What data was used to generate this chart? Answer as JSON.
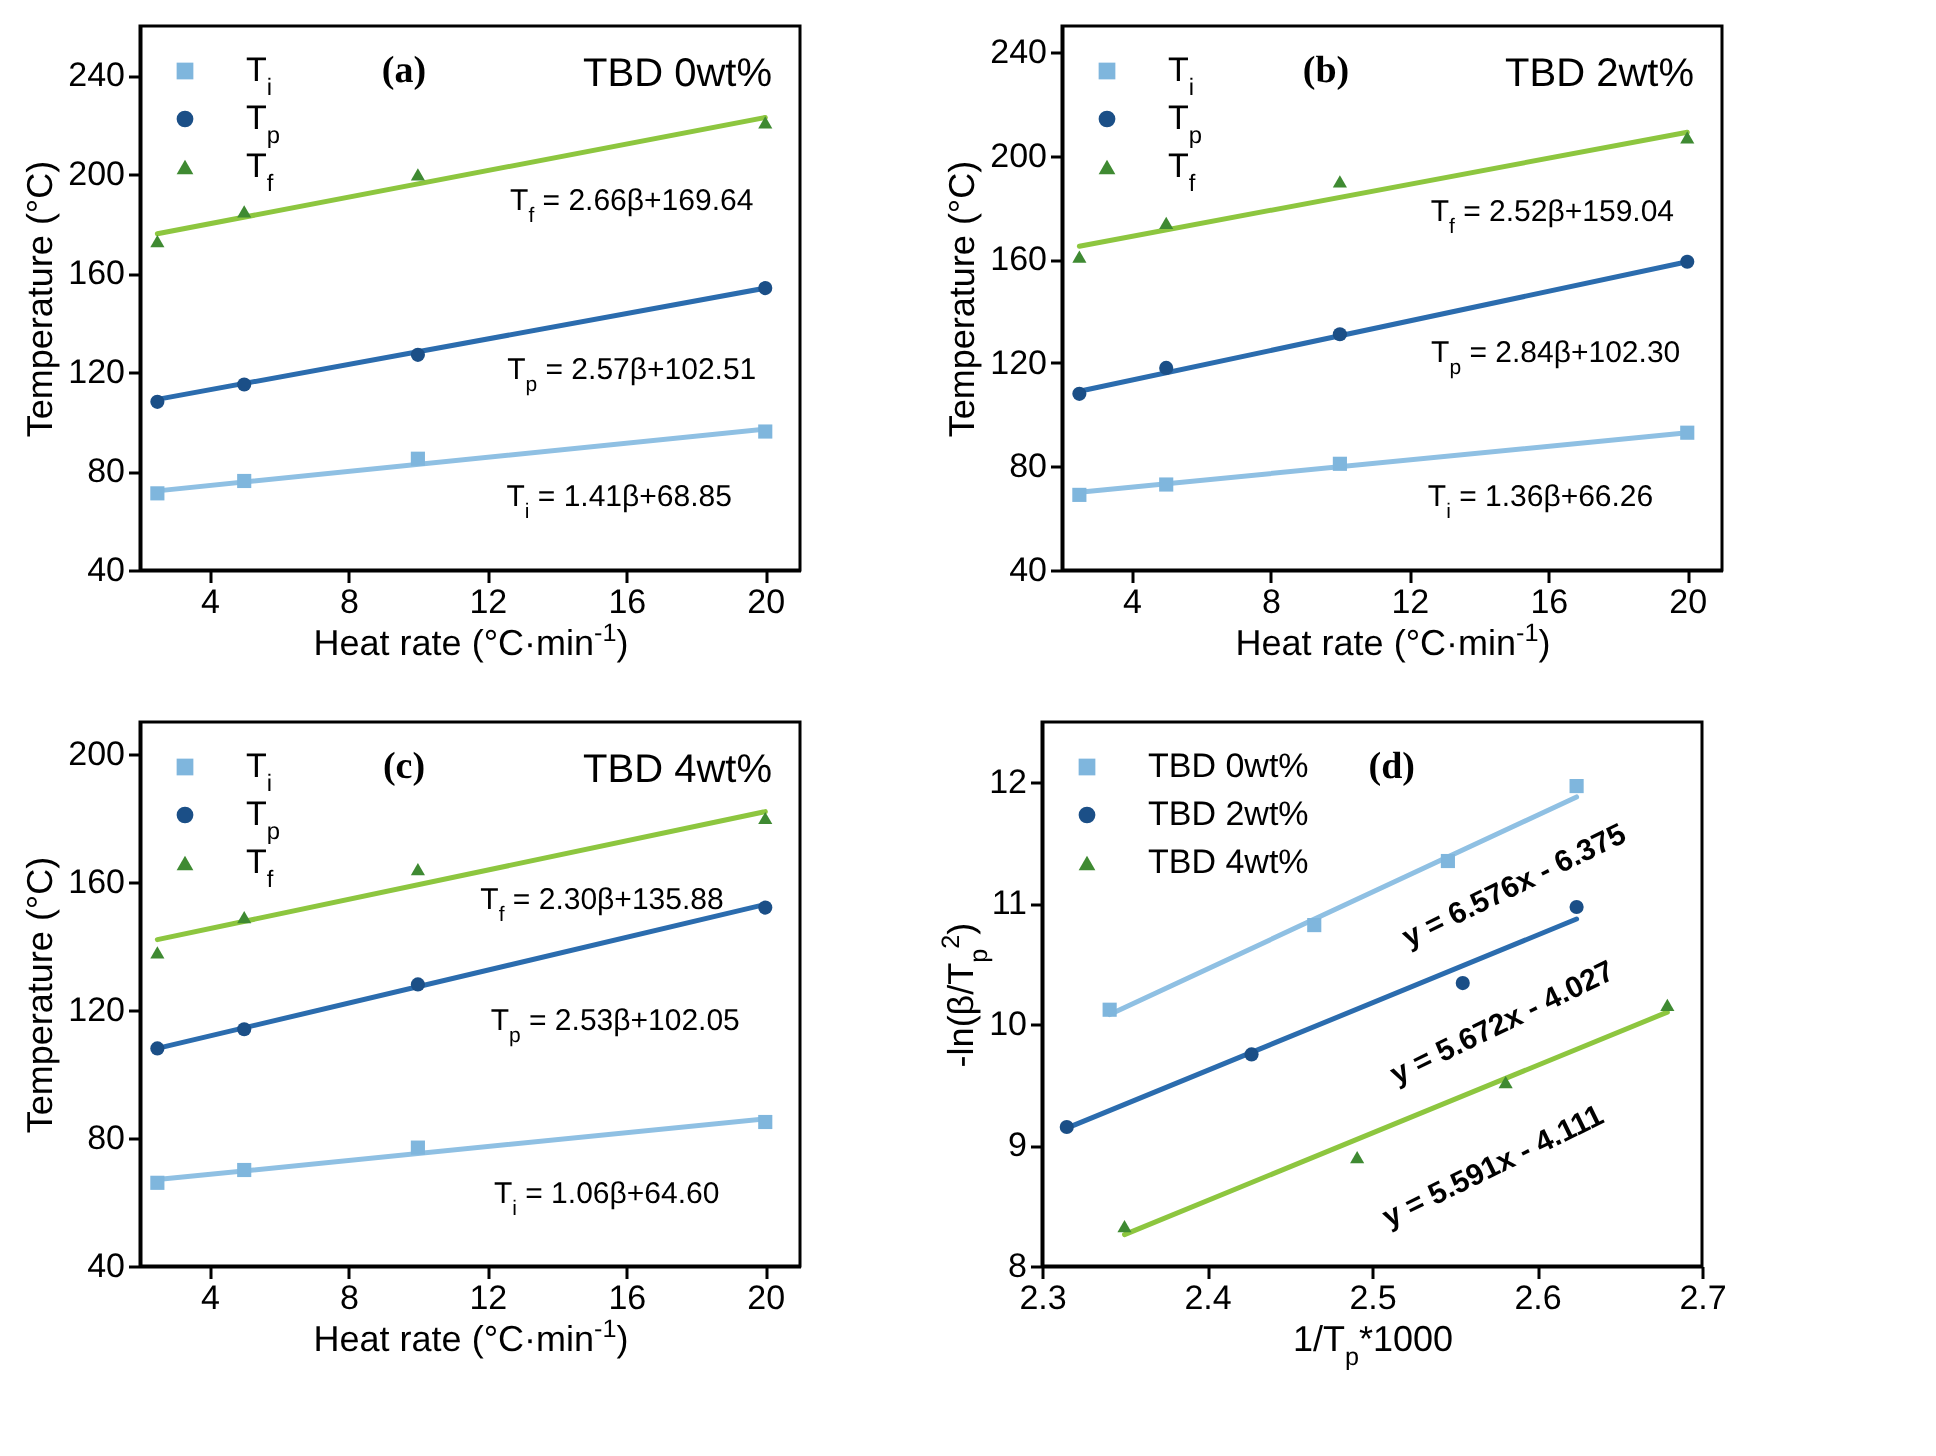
{
  "chart_data": [
    {
      "type": "scatter",
      "title": "(a)",
      "subtitle": "TBD 0wt%",
      "xlabel": "Heat rate (°C·min$^{-1}$)",
      "ylabel": "Temperature (°C)",
      "xlim": [
        2,
        21
      ],
      "xticks": [
        4,
        8,
        12,
        16,
        20
      ],
      "ylim": [
        40,
        260
      ],
      "yticks": [
        40,
        80,
        120,
        160,
        200,
        240
      ],
      "legend": "top left",
      "x": [
        2.5,
        5,
        10,
        20
      ],
      "series": [
        {
          "name": "T$_{i}$",
          "color": "#7fb6dd",
          "marker": "square",
          "values": [
            71,
            76,
            85,
            96
          ]
        },
        {
          "name": "T$_{p}$",
          "color": "#1b4f87",
          "marker": "circle",
          "values": [
            108,
            115,
            127,
            154
          ]
        },
        {
          "name": "T$_{f}$",
          "color": "#3f8a32",
          "marker": "triangle",
          "values": [
            173,
            185,
            200,
            221
          ]
        },
        {
          "type": "line",
          "color": "#8fc0e3",
          "x": [
            2.5,
            20
          ],
          "values": [
            72,
            97
          ]
        },
        {
          "type": "line",
          "color": "#2b6cae",
          "x": [
            2.5,
            20
          ],
          "values": [
            109,
            154
          ]
        },
        {
          "type": "line",
          "color": "#8dc63f",
          "x": [
            2.5,
            20
          ],
          "values": [
            176,
            223
          ]
        }
      ],
      "annotations": [
        "T$_{f}$ = 2.66β+169.64",
        "T$_{p}$ = 2.57β+102.51",
        "T$_{i}$ = 1.41β+68.85"
      ]
    },
    {
      "type": "scatter",
      "title": "(b)",
      "subtitle": "TBD 2wt%",
      "xlabel": "Heat rate (°C·min$^{-1}$)",
      "ylabel": "Temperature (°C)",
      "xlim": [
        2,
        21
      ],
      "xticks": [
        4,
        8,
        12,
        16,
        20
      ],
      "ylim": [
        40,
        250
      ],
      "yticks": [
        40,
        80,
        120,
        160,
        200,
        240
      ],
      "legend": "top left",
      "x": [
        2.5,
        5,
        10,
        20
      ],
      "series": [
        {
          "name": "T$_{i}$",
          "color": "#7fb6dd",
          "marker": "square",
          "values": [
            69,
            73,
            81,
            93
          ]
        },
        {
          "name": "T$_{p}$",
          "color": "#1b4f87",
          "marker": "circle",
          "values": [
            108,
            118,
            131,
            159
          ]
        },
        {
          "name": "T$_{f}$",
          "color": "#3f8a32",
          "marker": "triangle",
          "values": [
            161,
            174,
            190,
            207
          ]
        },
        {
          "type": "line",
          "color": "#8fc0e3",
          "x": [
            2.5,
            20
          ],
          "values": [
            70,
            93
          ]
        },
        {
          "type": "line",
          "color": "#2b6cae",
          "x": [
            2.5,
            20
          ],
          "values": [
            109,
            159
          ]
        },
        {
          "type": "line",
          "color": "#8dc63f",
          "x": [
            2.5,
            20
          ],
          "values": [
            165,
            209
          ]
        }
      ],
      "annotations": [
        "T$_{f}$ = 2.52β+159.04",
        "T$_{p}$ = 2.84β+102.30",
        "T$_{i}$ = 1.36β+66.26"
      ]
    },
    {
      "type": "scatter",
      "title": "(c)",
      "subtitle": "TBD 4wt%",
      "xlabel": "Heat rate (°C·min$^{-1}$)",
      "ylabel": "Temperature (°C)",
      "xlim": [
        2,
        21
      ],
      "xticks": [
        4,
        8,
        12,
        16,
        20
      ],
      "ylim": [
        40,
        210
      ],
      "yticks": [
        40,
        80,
        120,
        160,
        200
      ],
      "legend": "top left",
      "x": [
        2.5,
        5,
        10,
        20
      ],
      "series": [
        {
          "name": "T$_{i}$",
          "color": "#7fb6dd",
          "marker": "square",
          "values": [
            66,
            70,
            77,
            85
          ]
        },
        {
          "name": "T$_{p}$",
          "color": "#1b4f87",
          "marker": "circle",
          "values": [
            108,
            114,
            128,
            152
          ]
        },
        {
          "name": "T$_{f}$",
          "color": "#3f8a32",
          "marker": "triangle",
          "values": [
            138,
            149,
            164,
            180
          ]
        },
        {
          "type": "line",
          "color": "#8fc0e3",
          "x": [
            2.5,
            20
          ],
          "values": [
            67,
            86
          ]
        },
        {
          "type": "line",
          "color": "#2b6cae",
          "x": [
            2.5,
            20
          ],
          "values": [
            108,
            153
          ]
        },
        {
          "type": "line",
          "color": "#8dc63f",
          "x": [
            2.5,
            20
          ],
          "values": [
            142,
            182
          ]
        }
      ],
      "annotations": [
        "T$_{f}$ = 2.30β+135.88",
        "T$_{p}$ = 2.53β+102.05",
        "T$_{i}$ = 1.06β+64.60"
      ]
    },
    {
      "type": "scatter",
      "title": "(d)",
      "xlabel": "1/T$_{p}$*1000",
      "ylabel": "-ln(β/T$_{p}$$^{2}$)",
      "xlim": [
        2.3,
        2.7
      ],
      "xticks": [
        2.3,
        2.4,
        2.5,
        2.6,
        2.7
      ],
      "ylim": [
        8,
        12.5
      ],
      "yticks": [
        8,
        9,
        10,
        11,
        12
      ],
      "legend": "top left",
      "series": [
        {
          "name": "TBD 0wt%",
          "color": "#7fb6dd",
          "marker": "square",
          "x": [
            2.341,
            2.465,
            2.546,
            2.624
          ],
          "values": [
            10.12,
            10.82,
            11.35,
            11.97
          ]
        },
        {
          "name": "TBD 2wt%",
          "color": "#1b4f87",
          "marker": "circle",
          "x": [
            2.315,
            2.427,
            2.555,
            2.624
          ],
          "values": [
            9.15,
            9.75,
            10.34,
            10.97
          ]
        },
        {
          "name": "TBD 4wt%",
          "color": "#3f8a32",
          "marker": "triangle",
          "x": [
            2.35,
            2.491,
            2.581,
            2.679
          ],
          "values": [
            8.33,
            8.9,
            9.52,
            10.16
          ]
        },
        {
          "type": "line",
          "color": "#8fc0e3",
          "x": [
            2.341,
            2.624
          ],
          "values": [
            10.08,
            11.88
          ]
        },
        {
          "type": "line",
          "color": "#2b6cae",
          "x": [
            2.315,
            2.624
          ],
          "values": [
            9.14,
            10.87
          ]
        },
        {
          "type": "line",
          "color": "#8dc63f",
          "x": [
            2.35,
            2.679
          ],
          "values": [
            8.26,
            10.1
          ]
        }
      ],
      "annotations": [
        "y = 6.576x - 6.375",
        "y = 5.672x - 4.027",
        "y = 5.591x - 4.111"
      ]
    }
  ]
}
